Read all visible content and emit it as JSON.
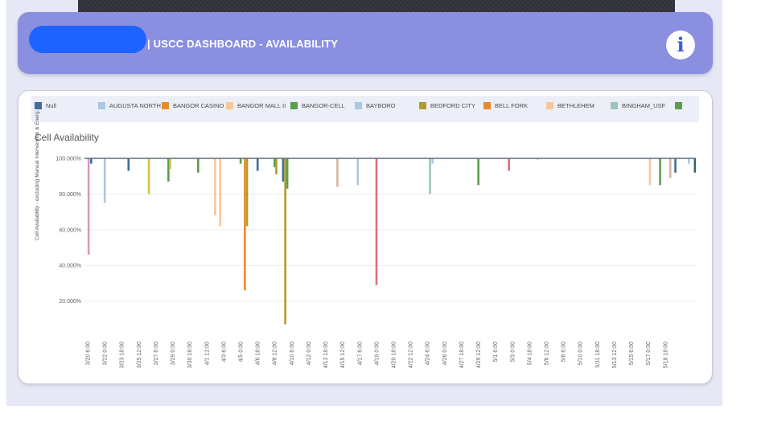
{
  "header": {
    "title": "| USCC DASHBOARD - AVAILABILITY",
    "info_glyph": "i"
  },
  "legend": [
    {
      "label": "Null",
      "color": "#3c6e9e"
    },
    {
      "label": "AUGUSTA NORTH",
      "color": "#a9c8e3"
    },
    {
      "label": "BANGOR CASINO",
      "color": "#e58a2f"
    },
    {
      "label": "BANGOR MALL II",
      "color": "#f6c79a"
    },
    {
      "label": "BANGOR-CELL",
      "color": "#5a9e4b"
    },
    {
      "label": "BAYBORO",
      "color": "#a9c8e3"
    },
    {
      "label": "BEDFORD CITY",
      "color": "#b39b2c"
    },
    {
      "label": "BELL FORK",
      "color": "#e58a2f"
    },
    {
      "label": "BETHLEHEM",
      "color": "#f6c79a"
    },
    {
      "label": "BINGHAM_USF",
      "color": "#9bc4c0"
    },
    {
      "label": "",
      "color": "#5a9e4b"
    }
  ],
  "chart_data": {
    "type": "bar",
    "title": "Cell Availability",
    "ylabel": "Cell Availability - excluding Manual Intervention & Energ...",
    "ylim": [
      0,
      100
    ],
    "y_ticks": [
      "20.000%",
      "40.000%",
      "60.000%",
      "80.000%",
      "100.000%"
    ],
    "x_ticks": [
      "3/20 6:00",
      "3/22 0:00",
      "3/23 18:00",
      "3/25 12:00",
      "3/27 6:00",
      "3/29 0:00",
      "3/30 18:00",
      "4/1 12:00",
      "4/3 6:00",
      "4/5 0:00",
      "4/6 18:00",
      "4/8 12:00",
      "4/10 6:00",
      "4/12 0:00",
      "4/13 18:00",
      "4/15 12:00",
      "4/17 6:00",
      "4/19 0:00",
      "4/20 18:00",
      "4/22 12:00",
      "4/24 6:00",
      "4/26 0:00",
      "4/27 18:00",
      "4/29 12:00",
      "5/1 6:00",
      "5/3 0:00",
      "5/4 18:00",
      "5/6 12:00",
      "5/8 6:00",
      "5/10 0:00",
      "5/11 18:00",
      "5/13 12:00",
      "5/15 6:00",
      "5/17 0:00",
      "5/18 18:00"
    ],
    "bars": [
      {
        "x": 0.05,
        "value": 46,
        "color": "#d99ab8"
      },
      {
        "x": 0.2,
        "value": 97,
        "color": "#3c6e9e"
      },
      {
        "x": 1.0,
        "value": 75,
        "color": "#a9c8e3"
      },
      {
        "x": 2.4,
        "value": 93,
        "color": "#3c6e9e"
      },
      {
        "x": 3.6,
        "value": 80,
        "color": "#d6c24a"
      },
      {
        "x": 4.75,
        "value": 87,
        "color": "#5a9e4b"
      },
      {
        "x": 4.85,
        "value": 94,
        "color": "#d6c24a"
      },
      {
        "x": 6.5,
        "value": 92,
        "color": "#5a9e4b"
      },
      {
        "x": 7.5,
        "value": 68,
        "color": "#f6c79a"
      },
      {
        "x": 7.8,
        "value": 62,
        "color": "#f6c79a"
      },
      {
        "x": 9.0,
        "value": 97,
        "color": "#5a9e4b"
      },
      {
        "x": 9.25,
        "value": 26,
        "color": "#e58a2f"
      },
      {
        "x": 9.38,
        "value": 62,
        "color": "#b39b2c"
      },
      {
        "x": 10.0,
        "value": 93,
        "color": "#3c6e9e"
      },
      {
        "x": 11.0,
        "value": 95,
        "color": "#5a9e4b"
      },
      {
        "x": 11.1,
        "value": 91,
        "color": "#b39b2c"
      },
      {
        "x": 11.5,
        "value": 87,
        "color": "#3c6e9e"
      },
      {
        "x": 11.63,
        "value": 7,
        "color": "#b39b2c"
      },
      {
        "x": 11.75,
        "value": 83,
        "color": "#5a9e4b"
      },
      {
        "x": 14.7,
        "value": 84,
        "color": "#d6b4a0"
      },
      {
        "x": 15.9,
        "value": 85,
        "color": "#a9c8e3"
      },
      {
        "x": 17.0,
        "value": 29,
        "color": "#d9707a"
      },
      {
        "x": 20.15,
        "value": 80,
        "color": "#9bc4c0"
      },
      {
        "x": 20.3,
        "value": 97,
        "color": "#a9c8e3"
      },
      {
        "x": 23.0,
        "value": 85,
        "color": "#5a9e4b"
      },
      {
        "x": 24.8,
        "value": 93,
        "color": "#d9707a"
      },
      {
        "x": 26.5,
        "value": 99,
        "color": "#cfd6e4"
      },
      {
        "x": 33.1,
        "value": 85,
        "color": "#f6c79a"
      },
      {
        "x": 33.7,
        "value": 85,
        "color": "#5a9e4b"
      },
      {
        "x": 34.3,
        "value": 89,
        "color": "#d6b4a0"
      },
      {
        "x": 34.6,
        "value": 92,
        "color": "#3c6e9e"
      },
      {
        "x": 35.4,
        "value": 97,
        "color": "#a9c8e3"
      },
      {
        "x": 35.75,
        "value": 92,
        "color": "#2e6b58"
      }
    ]
  }
}
